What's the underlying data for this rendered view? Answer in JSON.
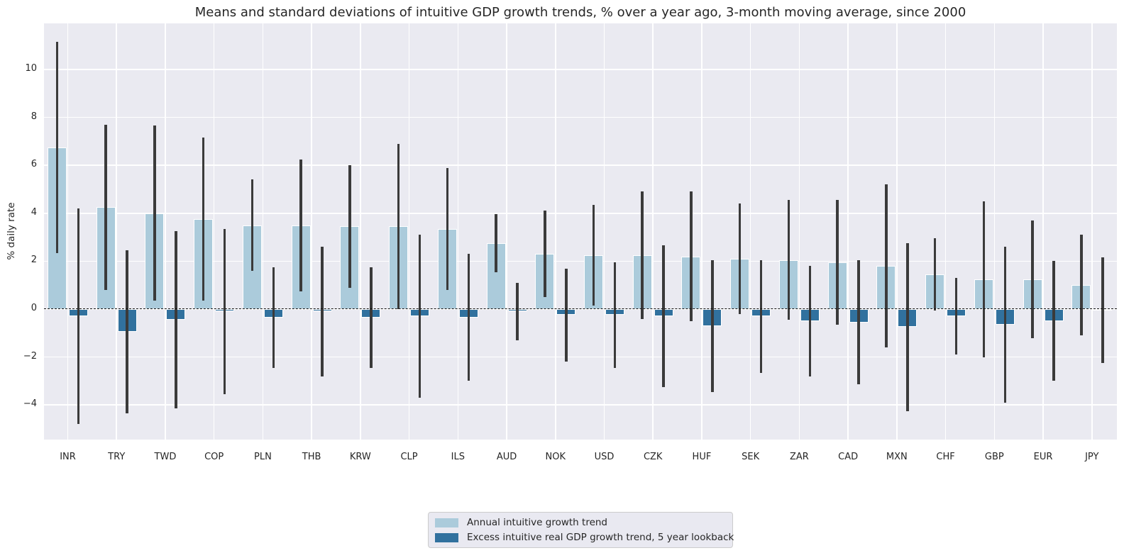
{
  "title": "Means and standard deviations of intuitive GDP growth trends, % over a year ago, 3-month moving average, since 2000",
  "ylabel": "% daily rate",
  "colors": {
    "figure_background": "#ffffff",
    "plot_background": "#eaeaf1",
    "gridline": "#ffffff",
    "bar_light": "#abcbdb",
    "bar_dark": "#31719e",
    "error_bar": "#3a3a3a",
    "zero_line": "#111111",
    "text": "#262626",
    "legend_background": "#e9e9f1",
    "legend_border": "#cccccc"
  },
  "legend": {
    "items": [
      {
        "label": "Annual intuitive growth trend",
        "color": "#abcbdb"
      },
      {
        "label": "Excess intuitive real GDP growth trend, 5 year lookback",
        "color": "#31719e"
      }
    ]
  },
  "chart_data": {
    "type": "bar",
    "title": "Means and standard deviations of intuitive GDP growth trends, % over a year ago, 3-month moving average, since 2000",
    "xlabel": "",
    "ylabel": "% daily rate",
    "categories": [
      "INR",
      "TRY",
      "TWD",
      "COP",
      "PLN",
      "THB",
      "KRW",
      "CLP",
      "ILS",
      "AUD",
      "NOK",
      "USD",
      "CZK",
      "HUF",
      "SEK",
      "ZAR",
      "CAD",
      "MXN",
      "CHF",
      "GBP",
      "EUR",
      "JPY"
    ],
    "series": [
      {
        "name": "Annual intuitive growth trend",
        "color": "#abcbdb",
        "means": [
          6.75,
          4.25,
          4.0,
          3.75,
          3.5,
          3.5,
          3.45,
          3.45,
          3.35,
          2.75,
          2.3,
          2.25,
          2.25,
          2.2,
          2.1,
          2.05,
          1.95,
          1.8,
          1.45,
          1.25,
          1.25,
          1.0
        ],
        "stds": [
          4.4,
          3.45,
          3.65,
          3.4,
          1.9,
          2.75,
          2.55,
          3.45,
          2.55,
          1.2,
          1.8,
          2.1,
          2.65,
          2.7,
          2.3,
          2.5,
          2.6,
          3.4,
          1.5,
          3.25,
          2.45,
          2.1
        ]
      },
      {
        "name": "Excess intuitive real GDP growth trend, 5 year lookback",
        "color": "#31719e",
        "means": [
          -0.3,
          -0.95,
          -0.45,
          -0.1,
          -0.35,
          -0.1,
          -0.35,
          -0.3,
          -0.35,
          -0.1,
          -0.25,
          -0.25,
          -0.3,
          -0.7,
          -0.3,
          -0.5,
          -0.55,
          -0.75,
          -0.3,
          -0.65,
          -0.5,
          -0.05
        ],
        "stds": [
          4.5,
          3.4,
          3.7,
          3.45,
          2.1,
          2.7,
          2.1,
          3.4,
          2.65,
          1.2,
          1.95,
          2.2,
          2.95,
          2.75,
          2.35,
          2.3,
          2.6,
          3.5,
          1.6,
          3.25,
          2.5,
          2.2
        ]
      }
    ],
    "error_bars": "mean plus-minus one standard deviation",
    "yticks": [
      -4,
      -2,
      0,
      2,
      4,
      6,
      8,
      10
    ],
    "ylim": [
      -5.44,
      11.92
    ],
    "grid": true,
    "zero_line": "dashed",
    "legend_position": "bottom-center"
  }
}
